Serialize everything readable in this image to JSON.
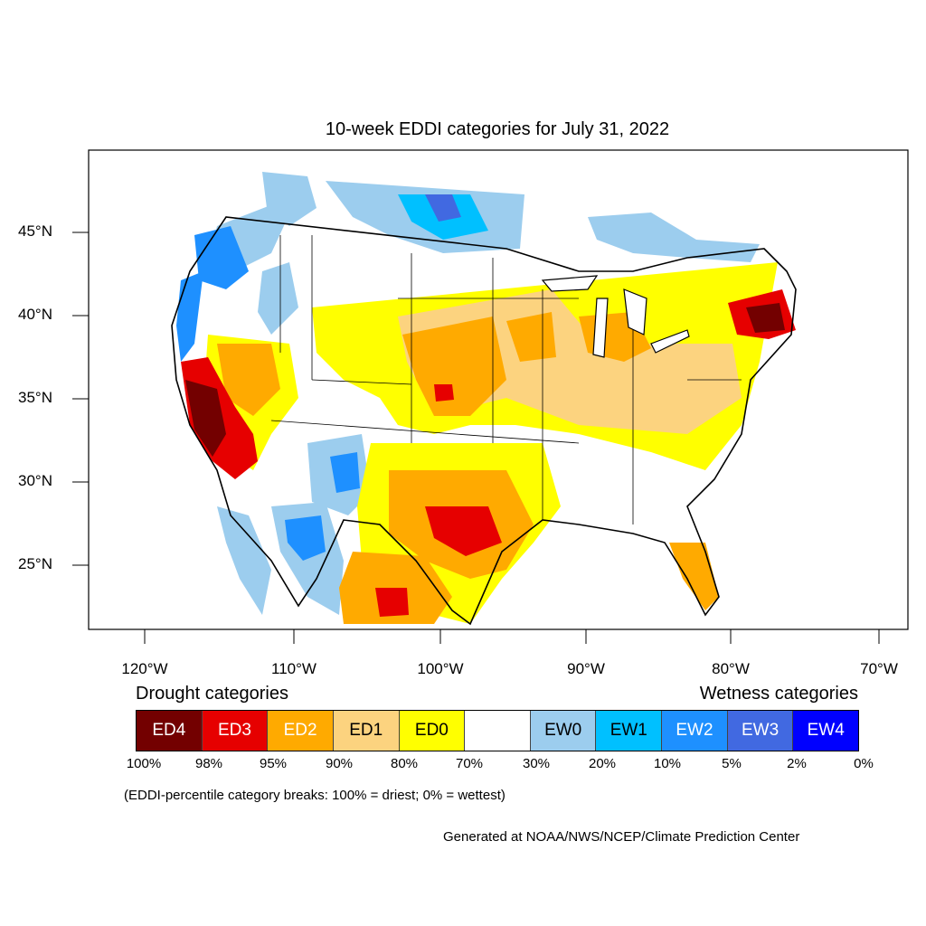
{
  "title": "10-week EDDI categories for July 31, 2022",
  "lat_labels": [
    "45°N",
    "40°N",
    "35°N",
    "30°N",
    "25°N"
  ],
  "lon_labels": [
    "120°W",
    "110°W",
    "100°W",
    "90°W",
    "80°W",
    "70°W"
  ],
  "legend": {
    "drought_heading": "Drought categories",
    "wetness_heading": "Wetness categories",
    "categories": [
      {
        "label": "ED4",
        "color": "#730000",
        "text_color": "#ffffff"
      },
      {
        "label": "ED3",
        "color": "#e60000",
        "text_color": "#ffffff"
      },
      {
        "label": "ED2",
        "color": "#ffaa00",
        "text_color": "#ffffff"
      },
      {
        "label": "ED1",
        "color": "#fcd37f",
        "text_color": "#000000"
      },
      {
        "label": "ED0",
        "color": "#ffff00",
        "text_color": "#000000"
      },
      {
        "label": "",
        "color": "#ffffff",
        "text_color": "#000000"
      },
      {
        "label": "EW0",
        "color": "#9ccdee",
        "text_color": "#000000"
      },
      {
        "label": "EW1",
        "color": "#00c0ff",
        "text_color": "#000000"
      },
      {
        "label": "EW2",
        "color": "#1e90ff",
        "text_color": "#ffffff"
      },
      {
        "label": "EW3",
        "color": "#4169e1",
        "text_color": "#ffffff"
      },
      {
        "label": "EW4",
        "color": "#0000ff",
        "text_color": "#ffffff"
      }
    ],
    "percentiles": [
      "100%",
      "98%",
      "95%",
      "90%",
      "80%",
      "70%",
      "30%",
      "20%",
      "10%",
      "5%",
      "2%",
      "0%"
    ]
  },
  "breaks_note": "(EDDI-percentile category breaks: 100% = driest; 0% = wettest)",
  "credit": "Generated at NOAA/NWS/NCEP/Climate Prediction Center"
}
